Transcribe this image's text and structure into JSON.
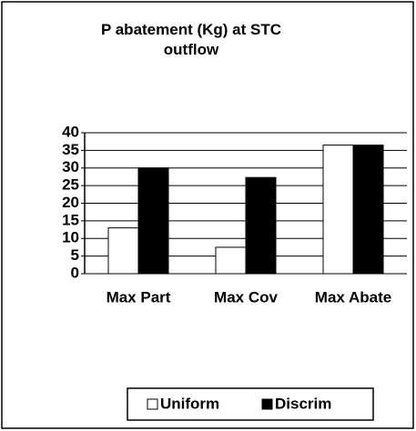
{
  "chart_data": {
    "type": "bar",
    "title": "P abatement (Kg) at STC outflow",
    "categories": [
      "Max Part",
      "Max Cov",
      "Max Abate"
    ],
    "series": [
      {
        "name": "Uniform",
        "color": "#ffffff",
        "values": [
          13,
          7.5,
          36.5
        ]
      },
      {
        "name": "Discrim",
        "color": "#000000",
        "values": [
          30,
          27.3,
          36.5
        ]
      }
    ],
    "ylim": [
      0,
      40
    ],
    "yticks": [
      0,
      5,
      10,
      15,
      20,
      25,
      30,
      35,
      40
    ],
    "grid": true,
    "legend": "bottom"
  }
}
